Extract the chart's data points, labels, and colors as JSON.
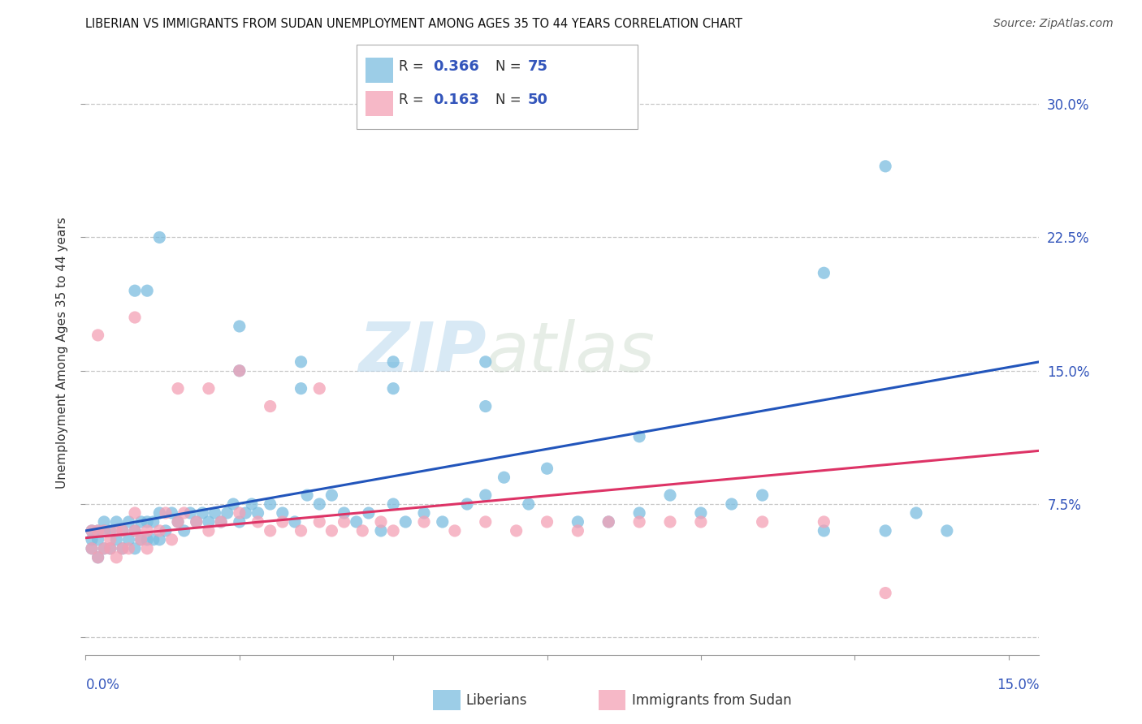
{
  "title": "LIBERIAN VS IMMIGRANTS FROM SUDAN UNEMPLOYMENT AMONG AGES 35 TO 44 YEARS CORRELATION CHART",
  "source": "Source: ZipAtlas.com",
  "ylabel": "Unemployment Among Ages 35 to 44 years",
  "x_label_bottom_left": "0.0%",
  "x_label_bottom_right": "15.0%",
  "y_ticks": [
    0.0,
    0.075,
    0.15,
    0.225,
    0.3
  ],
  "y_tick_labels": [
    "",
    "7.5%",
    "15.0%",
    "22.5%",
    "30.0%"
  ],
  "xlim": [
    0.0,
    0.155
  ],
  "ylim": [
    -0.01,
    0.33
  ],
  "blue_color": "#7bbde0",
  "pink_color": "#f4a0b5",
  "line_blue": "#2255bb",
  "line_pink": "#dd3366",
  "watermark_zip": "ZIP",
  "watermark_atlas": "atlas",
  "grid_color": "#c8c8c8",
  "bg_color": "#ffffff",
  "blue_line_x": [
    0.0,
    0.155
  ],
  "blue_line_y": [
    0.06,
    0.155
  ],
  "pink_line_x": [
    0.0,
    0.155
  ],
  "pink_line_y": [
    0.056,
    0.105
  ],
  "blue_scatter_x": [
    0.001,
    0.001,
    0.001,
    0.002,
    0.002,
    0.002,
    0.003,
    0.003,
    0.003,
    0.004,
    0.004,
    0.005,
    0.005,
    0.006,
    0.006,
    0.007,
    0.007,
    0.008,
    0.008,
    0.009,
    0.009,
    0.01,
    0.01,
    0.011,
    0.011,
    0.012,
    0.012,
    0.013,
    0.014,
    0.015,
    0.016,
    0.017,
    0.018,
    0.019,
    0.02,
    0.021,
    0.022,
    0.023,
    0.024,
    0.025,
    0.026,
    0.027,
    0.028,
    0.03,
    0.032,
    0.034,
    0.036,
    0.038,
    0.04,
    0.042,
    0.044,
    0.046,
    0.048,
    0.05,
    0.052,
    0.055,
    0.058,
    0.062,
    0.065,
    0.068,
    0.072,
    0.075,
    0.08,
    0.085,
    0.09,
    0.095,
    0.1,
    0.105,
    0.11,
    0.12,
    0.13,
    0.135,
    0.14,
    0.01,
    0.13
  ],
  "blue_scatter_y": [
    0.05,
    0.055,
    0.06,
    0.045,
    0.055,
    0.06,
    0.05,
    0.06,
    0.065,
    0.05,
    0.06,
    0.055,
    0.065,
    0.05,
    0.06,
    0.055,
    0.065,
    0.05,
    0.06,
    0.055,
    0.065,
    0.055,
    0.065,
    0.055,
    0.065,
    0.055,
    0.07,
    0.06,
    0.07,
    0.065,
    0.06,
    0.07,
    0.065,
    0.07,
    0.065,
    0.07,
    0.065,
    0.07,
    0.075,
    0.065,
    0.07,
    0.075,
    0.07,
    0.075,
    0.07,
    0.065,
    0.08,
    0.075,
    0.08,
    0.07,
    0.065,
    0.07,
    0.06,
    0.075,
    0.065,
    0.07,
    0.065,
    0.075,
    0.08,
    0.09,
    0.075,
    0.095,
    0.065,
    0.065,
    0.07,
    0.08,
    0.07,
    0.075,
    0.08,
    0.06,
    0.06,
    0.07,
    0.06,
    0.195,
    0.265
  ],
  "blue_scatter_special": [
    [
      0.012,
      0.225
    ],
    [
      0.008,
      0.195
    ],
    [
      0.025,
      0.175
    ],
    [
      0.025,
      0.15
    ],
    [
      0.035,
      0.14
    ],
    [
      0.035,
      0.155
    ],
    [
      0.05,
      0.155
    ],
    [
      0.05,
      0.14
    ],
    [
      0.065,
      0.13
    ],
    [
      0.065,
      0.155
    ],
    [
      0.09,
      0.113
    ],
    [
      0.12,
      0.205
    ]
  ],
  "pink_scatter_x": [
    0.001,
    0.001,
    0.002,
    0.002,
    0.003,
    0.003,
    0.004,
    0.004,
    0.005,
    0.005,
    0.006,
    0.006,
    0.007,
    0.008,
    0.008,
    0.009,
    0.01,
    0.01,
    0.012,
    0.013,
    0.014,
    0.015,
    0.016,
    0.018,
    0.02,
    0.022,
    0.025,
    0.028,
    0.03,
    0.032,
    0.035,
    0.038,
    0.04,
    0.042,
    0.045,
    0.048,
    0.05,
    0.055,
    0.06,
    0.065,
    0.07,
    0.075,
    0.08,
    0.085,
    0.09,
    0.095,
    0.1,
    0.11,
    0.12,
    0.13
  ],
  "pink_scatter_y": [
    0.05,
    0.06,
    0.045,
    0.06,
    0.05,
    0.06,
    0.05,
    0.055,
    0.045,
    0.06,
    0.05,
    0.06,
    0.05,
    0.06,
    0.07,
    0.055,
    0.05,
    0.06,
    0.06,
    0.07,
    0.055,
    0.065,
    0.07,
    0.065,
    0.06,
    0.065,
    0.07,
    0.065,
    0.06,
    0.065,
    0.06,
    0.065,
    0.06,
    0.065,
    0.06,
    0.065,
    0.06,
    0.065,
    0.06,
    0.065,
    0.06,
    0.065,
    0.06,
    0.065,
    0.065,
    0.065,
    0.065,
    0.065,
    0.065,
    0.025
  ],
  "pink_scatter_special": [
    [
      0.002,
      0.17
    ],
    [
      0.008,
      0.18
    ],
    [
      0.015,
      0.14
    ],
    [
      0.02,
      0.14
    ],
    [
      0.025,
      0.15
    ],
    [
      0.03,
      0.13
    ],
    [
      0.038,
      0.14
    ]
  ]
}
